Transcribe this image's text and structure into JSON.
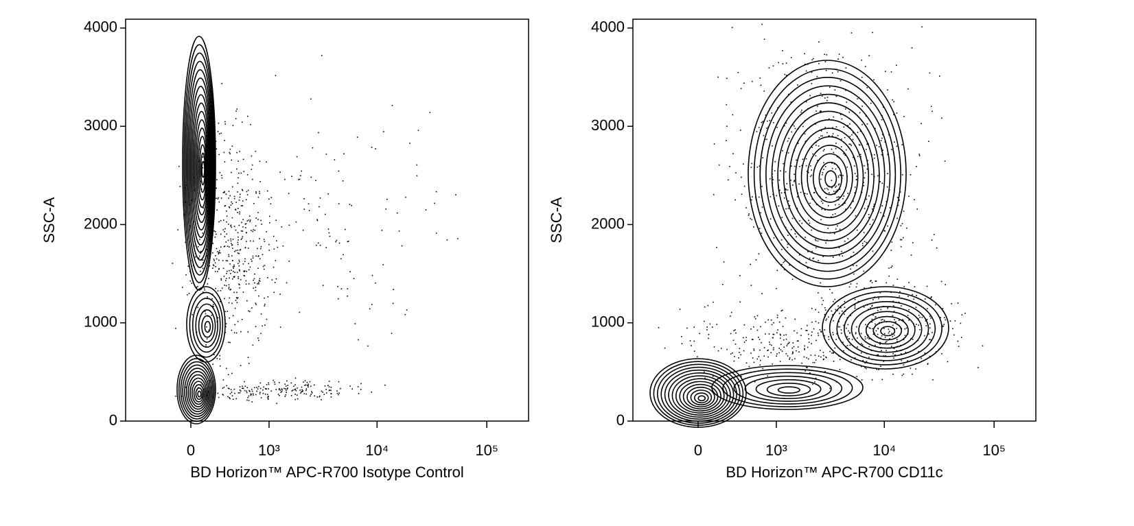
{
  "chart_data": [
    {
      "type": "contour",
      "x_label": "BD Horizon™ APC-R700 Isotype Control",
      "y_label": "SSC-A",
      "xscale": "biexponential",
      "xlim": [
        -740,
        240000
      ],
      "ylim": [
        0,
        4090
      ],
      "xticks": [
        0,
        {
          "value": 1000,
          "label": "10³"
        },
        {
          "value": 10000,
          "label": "10⁴"
        },
        {
          "value": 100000,
          "label": "10⁵"
        }
      ],
      "yticks": [
        0,
        1000,
        2000,
        3000,
        4000
      ],
      "color": "#000000"
    },
    {
      "type": "contour",
      "x_label": "BD Horizon™ APC-R700 CD11c",
      "y_label": "SSC-A",
      "xscale": "biexponential",
      "xlim": [
        -740,
        240000
      ],
      "ylim": [
        0,
        4090
      ],
      "xticks": [
        0,
        {
          "value": 1000,
          "label": "10³"
        },
        {
          "value": 10000,
          "label": "10⁴"
        },
        {
          "value": 100000,
          "label": "10⁵"
        }
      ],
      "yticks": [
        0,
        1000,
        2000,
        3000,
        4000
      ],
      "color": "#000000"
    }
  ]
}
